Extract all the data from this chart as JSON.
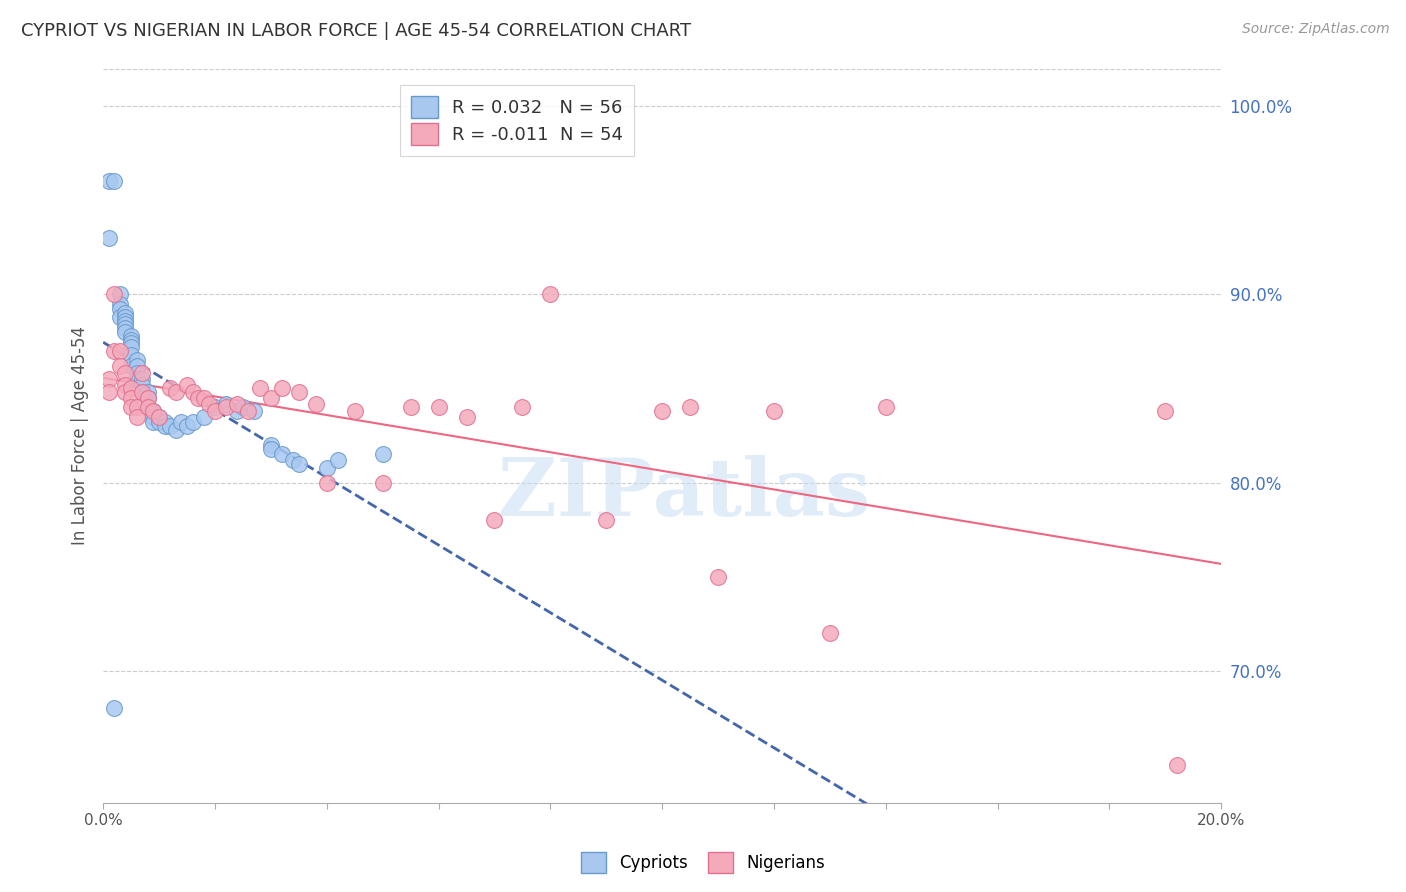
{
  "title": "CYPRIOT VS NIGERIAN IN LABOR FORCE | AGE 45-54 CORRELATION CHART",
  "source": "Source: ZipAtlas.com",
  "ylabel": "In Labor Force | Age 45-54",
  "xlim": [
    0.0,
    0.2
  ],
  "ylim": [
    0.63,
    1.02
  ],
  "yticks": [
    0.7,
    0.8,
    0.9,
    1.0
  ],
  "ytick_labels": [
    "70.0%",
    "80.0%",
    "90.0%",
    "100.0%"
  ],
  "xticks": [
    0.0,
    0.02,
    0.04,
    0.06,
    0.08,
    0.1,
    0.12,
    0.14,
    0.16,
    0.18,
    0.2
  ],
  "xtick_labels": [
    "0.0%",
    "",
    "",
    "",
    "",
    "",
    "",
    "",
    "",
    "",
    "20.0%"
  ],
  "cypriot_R": 0.032,
  "cypriot_N": 56,
  "nigerian_R": -0.011,
  "nigerian_N": 54,
  "cypriot_color": "#A8C8F0",
  "nigerian_color": "#F4AABB",
  "cypriot_edge_color": "#6699CC",
  "nigerian_edge_color": "#E07090",
  "cypriot_line_color": "#4466AA",
  "nigerian_line_color": "#EE6680",
  "watermark_text": "ZIPatlas",
  "cypriot_x": [
    0.001,
    0.001,
    0.002,
    0.003,
    0.003,
    0.003,
    0.003,
    0.004,
    0.004,
    0.004,
    0.004,
    0.004,
    0.004,
    0.005,
    0.005,
    0.005,
    0.005,
    0.005,
    0.005,
    0.006,
    0.006,
    0.006,
    0.006,
    0.007,
    0.007,
    0.007,
    0.008,
    0.008,
    0.008,
    0.009,
    0.009,
    0.009,
    0.01,
    0.01,
    0.011,
    0.011,
    0.012,
    0.013,
    0.014,
    0.015,
    0.016,
    0.018,
    0.02,
    0.022,
    0.024,
    0.025,
    0.027,
    0.03,
    0.03,
    0.032,
    0.034,
    0.035,
    0.04,
    0.042,
    0.05,
    0.002
  ],
  "cypriot_y": [
    0.96,
    0.93,
    0.96,
    0.9,
    0.895,
    0.892,
    0.888,
    0.89,
    0.888,
    0.886,
    0.884,
    0.882,
    0.88,
    0.878,
    0.876,
    0.874,
    0.872,
    0.868,
    0.862,
    0.865,
    0.862,
    0.858,
    0.855,
    0.855,
    0.852,
    0.848,
    0.848,
    0.845,
    0.84,
    0.838,
    0.835,
    0.832,
    0.835,
    0.832,
    0.832,
    0.83,
    0.83,
    0.828,
    0.832,
    0.83,
    0.832,
    0.835,
    0.84,
    0.842,
    0.838,
    0.84,
    0.838,
    0.82,
    0.818,
    0.815,
    0.812,
    0.81,
    0.808,
    0.812,
    0.815,
    0.68
  ],
  "nigerian_x": [
    0.001,
    0.001,
    0.002,
    0.002,
    0.003,
    0.003,
    0.004,
    0.004,
    0.004,
    0.005,
    0.005,
    0.005,
    0.006,
    0.006,
    0.007,
    0.007,
    0.008,
    0.008,
    0.009,
    0.01,
    0.012,
    0.013,
    0.015,
    0.016,
    0.017,
    0.018,
    0.019,
    0.02,
    0.022,
    0.024,
    0.026,
    0.028,
    0.03,
    0.032,
    0.035,
    0.038,
    0.04,
    0.045,
    0.05,
    0.055,
    0.06,
    0.065,
    0.07,
    0.075,
    0.08,
    0.09,
    0.1,
    0.105,
    0.11,
    0.12,
    0.13,
    0.14,
    0.19,
    0.192
  ],
  "nigerian_y": [
    0.855,
    0.848,
    0.9,
    0.87,
    0.87,
    0.862,
    0.858,
    0.852,
    0.848,
    0.85,
    0.845,
    0.84,
    0.84,
    0.835,
    0.858,
    0.848,
    0.845,
    0.84,
    0.838,
    0.835,
    0.85,
    0.848,
    0.852,
    0.848,
    0.845,
    0.845,
    0.842,
    0.838,
    0.84,
    0.842,
    0.838,
    0.85,
    0.845,
    0.85,
    0.848,
    0.842,
    0.8,
    0.838,
    0.8,
    0.84,
    0.84,
    0.835,
    0.78,
    0.84,
    0.9,
    0.78,
    0.838,
    0.84,
    0.75,
    0.838,
    0.72,
    0.84,
    0.838,
    0.65
  ]
}
